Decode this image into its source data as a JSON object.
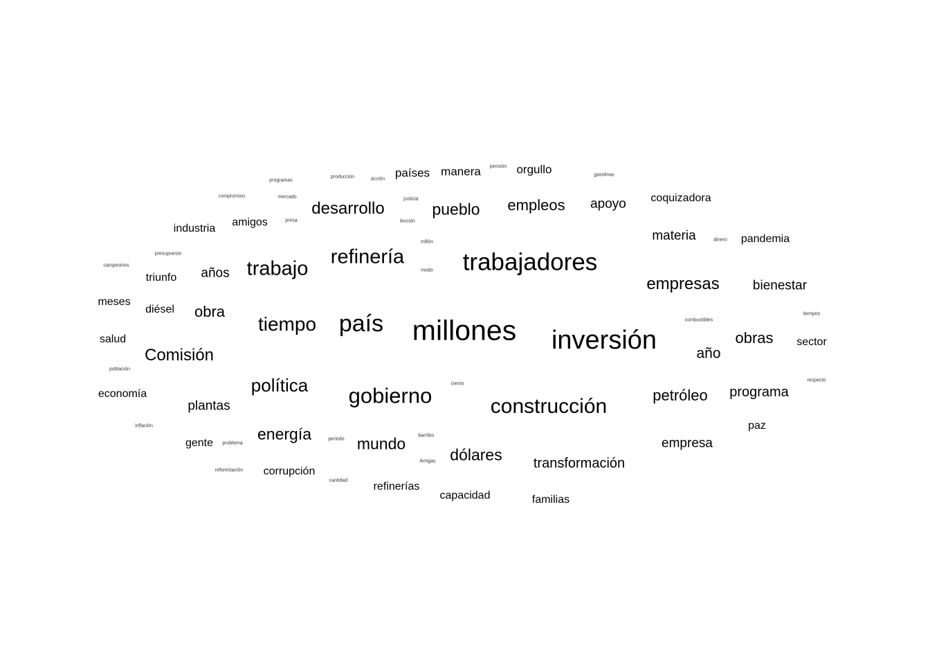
{
  "word_cloud": {
    "words": [
      {
        "text": "millones",
        "color": "#000000"
      },
      {
        "text": "inversión",
        "color": "#000000"
      },
      {
        "text": "trabajadores",
        "color": "#000000"
      },
      {
        "text": "país",
        "color": "#000000"
      },
      {
        "text": "gobierno",
        "color": "#000000"
      },
      {
        "text": "construcción",
        "color": "#000000"
      },
      {
        "text": "refinería",
        "color": "#000000"
      },
      {
        "text": "trabajo",
        "color": "#000000"
      },
      {
        "text": "tiempo",
        "color": "#000000"
      },
      {
        "text": "política",
        "color": "#000000"
      },
      {
        "text": "desarrollo",
        "color": "#000000"
      },
      {
        "text": "empresas",
        "color": "#000000"
      },
      {
        "text": "Comisión",
        "color": "#000000"
      },
      {
        "text": "pueblo",
        "color": "#000000"
      },
      {
        "text": "empleos",
        "color": "#000000"
      },
      {
        "text": "energía",
        "color": "#000000"
      },
      {
        "text": "mundo",
        "color": "#000000"
      },
      {
        "text": "dólares",
        "color": "#000000"
      },
      {
        "text": "petróleo",
        "color": "#000000"
      },
      {
        "text": "obras",
        "color": "#000000"
      },
      {
        "text": "obra",
        "color": "#000000"
      },
      {
        "text": "apoyo",
        "color": "#000000"
      },
      {
        "text": "año",
        "color": "#000000"
      },
      {
        "text": "transformación",
        "color": "#000000"
      },
      {
        "text": "programa",
        "color": "#000000"
      },
      {
        "text": "empresa",
        "color": "#000000"
      },
      {
        "text": "materia",
        "color": "#000000"
      },
      {
        "text": "bienestar",
        "color": "#000000"
      },
      {
        "text": "plantas",
        "color": "#000000"
      },
      {
        "text": "años",
        "color": "#000000"
      },
      {
        "text": "manera",
        "color": "#000000"
      },
      {
        "text": "países",
        "color": "#000000"
      },
      {
        "text": "orgullo",
        "color": "#000000"
      },
      {
        "text": "coquizadora",
        "color": "#000000"
      },
      {
        "text": "pandemia",
        "color": "#000000"
      },
      {
        "text": "amigos",
        "color": "#000000"
      },
      {
        "text": "industria",
        "color": "#000000"
      },
      {
        "text": "gente",
        "color": "#000000"
      },
      {
        "text": "corrupción",
        "color": "#000000"
      },
      {
        "text": "refinerías",
        "color": "#000000"
      },
      {
        "text": "capacidad",
        "color": "#000000"
      },
      {
        "text": "familias",
        "color": "#000000"
      },
      {
        "text": "economía",
        "color": "#000000"
      },
      {
        "text": "salud",
        "color": "#000000"
      },
      {
        "text": "meses",
        "color": "#000000"
      },
      {
        "text": "diésel",
        "color": "#000000"
      },
      {
        "text": "triunfo",
        "color": "#000000"
      },
      {
        "text": "sector",
        "color": "#000000"
      },
      {
        "text": "paz",
        "color": "#000000"
      },
      {
        "text": "programas",
        "color": "#333333"
      },
      {
        "text": "producción",
        "color": "#333333"
      },
      {
        "text": "acción",
        "color": "#333333"
      },
      {
        "text": "pensión",
        "color": "#333333"
      },
      {
        "text": "gasolinas",
        "color": "#333333"
      },
      {
        "text": "compromiso",
        "color": "#333333"
      },
      {
        "text": "mercado",
        "color": "#333333"
      },
      {
        "text": "justicia",
        "color": "#333333"
      },
      {
        "text": "presa",
        "color": "#333333"
      },
      {
        "text": "lección",
        "color": "#333333"
      },
      {
        "text": "presupuesto",
        "color": "#333333"
      },
      {
        "text": "millón",
        "color": "#333333"
      },
      {
        "text": "dinero",
        "color": "#333333"
      },
      {
        "text": "campesinos",
        "color": "#333333"
      },
      {
        "text": "modo",
        "color": "#333333"
      },
      {
        "text": "combustibles",
        "color": "#333333"
      },
      {
        "text": "tiempos",
        "color": "#333333"
      },
      {
        "text": "población",
        "color": "#333333"
      },
      {
        "text": "ciento",
        "color": "#333333"
      },
      {
        "text": "respecto",
        "color": "#333333"
      },
      {
        "text": "inflación",
        "color": "#333333"
      },
      {
        "text": "problema",
        "color": "#333333"
      },
      {
        "text": "periodo",
        "color": "#333333"
      },
      {
        "text": "barriles",
        "color": "#333333"
      },
      {
        "text": "Amigas",
        "color": "#333333"
      },
      {
        "text": "reforestación",
        "color": "#333333"
      },
      {
        "text": "cantidad",
        "color": "#333333"
      }
    ]
  }
}
